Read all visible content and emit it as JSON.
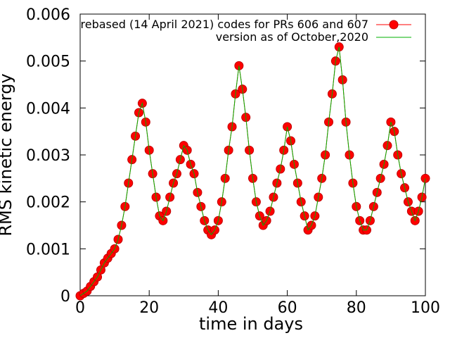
{
  "chart_data": {
    "type": "line",
    "title": "",
    "xlabel": "time in days",
    "ylabel": "RMS kinetic energy",
    "xlim": [
      0,
      100
    ],
    "ylim": [
      0,
      0.006
    ],
    "x_ticks": [
      0,
      20,
      40,
      60,
      80,
      100
    ],
    "x_tick_labels": [
      "0",
      "20",
      "40",
      "60",
      "80",
      "100"
    ],
    "y_ticks": [
      0,
      0.001,
      0.002,
      0.003,
      0.004,
      0.005,
      0.006
    ],
    "y_tick_labels": [
      "0",
      "0.001",
      "0.002",
      "0.003",
      "0.004",
      "0.005",
      "0.006"
    ],
    "grid": false,
    "legend_position": "top-right",
    "colors": {
      "series1": "#ff0000",
      "series1_edge": "#c00000",
      "series2": "#00b000",
      "axis": "#000000"
    },
    "x": [
      0,
      1,
      2,
      3,
      4,
      5,
      6,
      7,
      8,
      9,
      10,
      11,
      12,
      13,
      14,
      15,
      16,
      17,
      18,
      19,
      20,
      21,
      22,
      23,
      24,
      25,
      26,
      27,
      28,
      29,
      30,
      31,
      32,
      33,
      34,
      35,
      36,
      37,
      38,
      39,
      40,
      41,
      42,
      43,
      44,
      45,
      46,
      47,
      48,
      49,
      50,
      51,
      52,
      53,
      54,
      55,
      56,
      57,
      58,
      59,
      60,
      61,
      62,
      63,
      64,
      65,
      66,
      67,
      68,
      69,
      70,
      71,
      72,
      73,
      74,
      75,
      76,
      77,
      78,
      79,
      80,
      81,
      82,
      83,
      84,
      85,
      86,
      87,
      88,
      89,
      90,
      91,
      92,
      93,
      94,
      95,
      96,
      97,
      98,
      99,
      100
    ],
    "series": [
      {
        "name": "rebased (14 April 2021) codes for PRs 606 and 607",
        "style": "line+circle-markers",
        "values": [
          0,
          5e-05,
          0.0001,
          0.0002,
          0.0003,
          0.0004,
          0.00055,
          0.0007,
          0.0008,
          0.0009,
          0.001,
          0.0012,
          0.0015,
          0.0019,
          0.0024,
          0.0029,
          0.0034,
          0.0039,
          0.0041,
          0.0037,
          0.0031,
          0.0026,
          0.0021,
          0.0017,
          0.0016,
          0.0018,
          0.0021,
          0.0024,
          0.0026,
          0.0029,
          0.0032,
          0.0031,
          0.0028,
          0.0026,
          0.0022,
          0.0019,
          0.0016,
          0.0014,
          0.0013,
          0.0014,
          0.0016,
          0.002,
          0.0025,
          0.0031,
          0.0036,
          0.0043,
          0.0049,
          0.0044,
          0.0038,
          0.0031,
          0.0025,
          0.002,
          0.0017,
          0.0015,
          0.0016,
          0.0018,
          0.0021,
          0.0024,
          0.0027,
          0.0031,
          0.0036,
          0.0033,
          0.0028,
          0.0024,
          0.002,
          0.0017,
          0.0014,
          0.0015,
          0.0017,
          0.0021,
          0.0025,
          0.003,
          0.0037,
          0.0043,
          0.005,
          0.0053,
          0.0046,
          0.0037,
          0.003,
          0.0024,
          0.0019,
          0.0016,
          0.0014,
          0.0014,
          0.0016,
          0.0019,
          0.0022,
          0.0025,
          0.0028,
          0.0032,
          0.0037,
          0.0035,
          0.003,
          0.0026,
          0.0023,
          0.002,
          0.0018,
          0.0016,
          0.0018,
          0.0021,
          0.0025
        ]
      },
      {
        "name": "version as of October,2020",
        "style": "line",
        "values": [
          0,
          5e-05,
          0.0001,
          0.0002,
          0.0003,
          0.0004,
          0.00055,
          0.0007,
          0.0008,
          0.0009,
          0.001,
          0.0012,
          0.0015,
          0.0019,
          0.0024,
          0.0029,
          0.0034,
          0.0039,
          0.0041,
          0.0037,
          0.0031,
          0.0026,
          0.0021,
          0.0017,
          0.0016,
          0.0018,
          0.0021,
          0.0024,
          0.0026,
          0.0029,
          0.0032,
          0.0031,
          0.0028,
          0.0026,
          0.0022,
          0.0019,
          0.0016,
          0.0014,
          0.0013,
          0.0014,
          0.0016,
          0.002,
          0.0025,
          0.0031,
          0.0036,
          0.0043,
          0.0049,
          0.0044,
          0.0038,
          0.0031,
          0.0025,
          0.002,
          0.0017,
          0.0015,
          0.0016,
          0.0018,
          0.0021,
          0.0024,
          0.0027,
          0.0031,
          0.0036,
          0.0033,
          0.0028,
          0.0024,
          0.002,
          0.0017,
          0.0014,
          0.0015,
          0.0017,
          0.0021,
          0.0025,
          0.003,
          0.0037,
          0.0043,
          0.005,
          0.0053,
          0.0046,
          0.0037,
          0.003,
          0.0024,
          0.0019,
          0.0016,
          0.0014,
          0.0014,
          0.0016,
          0.0019,
          0.0022,
          0.0025,
          0.0028,
          0.0032,
          0.0037,
          0.0035,
          0.003,
          0.0026,
          0.0023,
          0.002,
          0.0018,
          0.0016,
          0.0018,
          0.0021,
          0.0025
        ]
      }
    ]
  }
}
